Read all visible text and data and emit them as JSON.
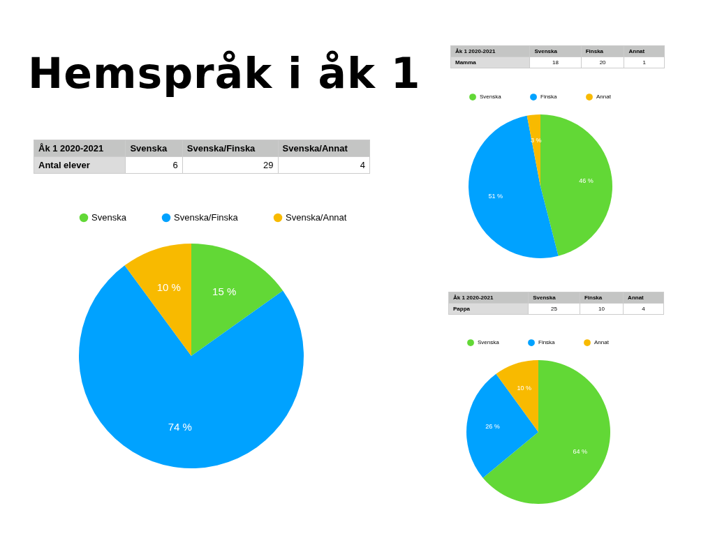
{
  "chart_data": [
    {
      "type": "other",
      "title": "Hemspråk i åk 1",
      "categories": [
        "Svenska",
        "Svenska/Finska",
        "Svenska/Annat"
      ],
      "values": [
        6,
        29,
        4
      ],
      "data_labels": true,
      "annotations": [
        "Åk 1 2020-2021",
        "Antal elever"
      ]
    },
    {
      "type": "pie",
      "categories": [
        "Svenska",
        "Svenska/Finska",
        "Svenska/Annat"
      ],
      "values": [
        15,
        74,
        10
      ],
      "colors": [
        "#62d836",
        "#00a2ff",
        "#f8ba00"
      ],
      "value_labels": [
        "15 %",
        "74 %",
        "10 %"
      ],
      "legend": "top"
    },
    {
      "type": "other",
      "categories": [
        "Svenska",
        "Finska",
        "Annat"
      ],
      "values": [
        18,
        20,
        1
      ],
      "data_labels": true,
      "annotations": [
        "Åk 1 2020-2021",
        "Mamma"
      ]
    },
    {
      "type": "pie",
      "categories": [
        "Svenska",
        "Finska",
        "Annat"
      ],
      "values": [
        46,
        51,
        3
      ],
      "colors": [
        "#62d836",
        "#00a2ff",
        "#f8ba00"
      ],
      "value_labels": [
        "46 %",
        "51 %",
        "3 %"
      ],
      "legend": "top"
    },
    {
      "type": "other",
      "categories": [
        "Svenska",
        "Finska",
        "Annat"
      ],
      "values": [
        25,
        10,
        4
      ],
      "data_labels": true,
      "annotations": [
        "Åk 1 2020-2021",
        "Pappa"
      ]
    },
    {
      "type": "pie",
      "categories": [
        "Svenska",
        "Finska",
        "Annat"
      ],
      "values": [
        64,
        26,
        10
      ],
      "colors": [
        "#62d836",
        "#00a2ff",
        "#f8ba00"
      ],
      "value_labels": [
        "64 %",
        "26 %",
        "10 %"
      ],
      "legend": "top"
    }
  ]
}
